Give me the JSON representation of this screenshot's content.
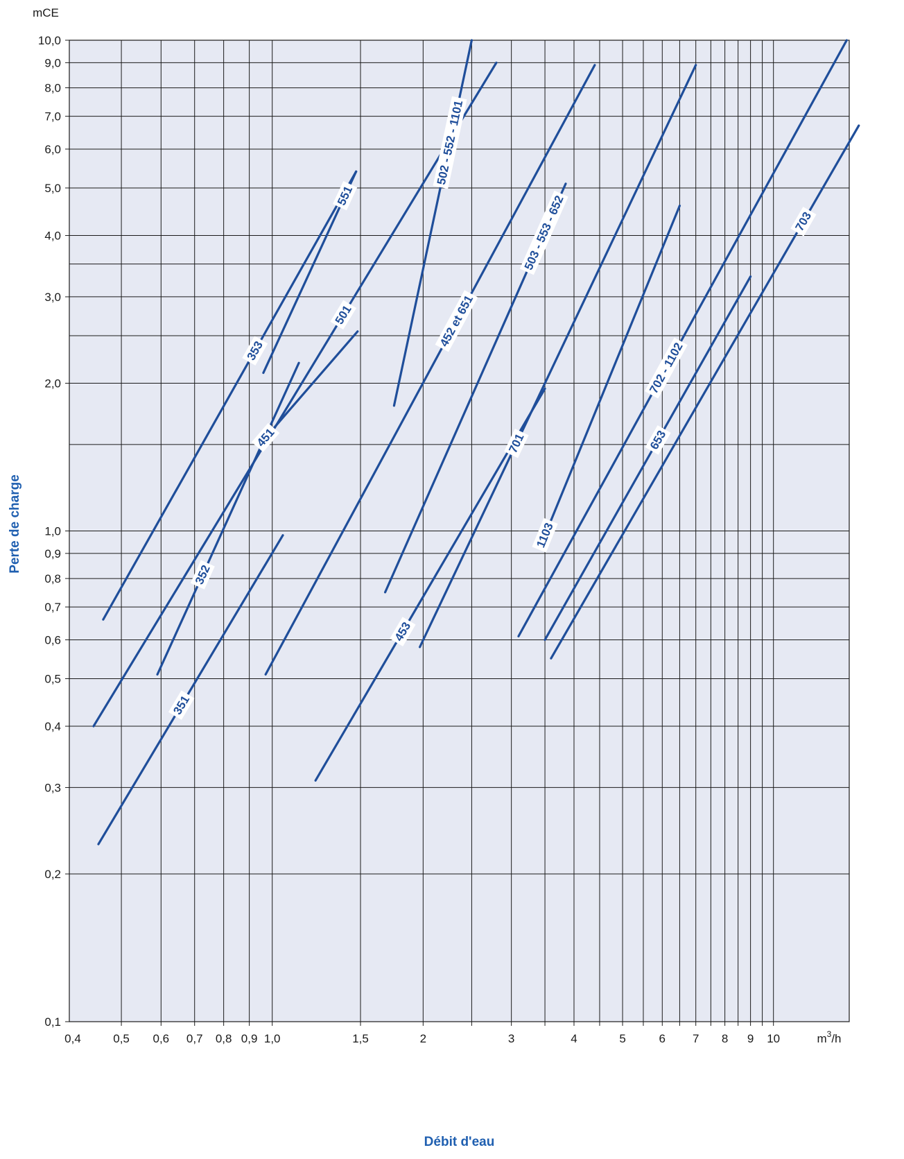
{
  "chart_data": {
    "type": "line",
    "title": "",
    "xlabel": "Débit d'eau",
    "ylabel": "Perte de charge",
    "x_unit_base": "m",
    "x_unit_sup": "3",
    "x_unit_tail": "/h",
    "y_unit": "mCE",
    "x_scale": "log",
    "y_scale": "log",
    "xlim": [
      0.4,
      15
    ],
    "ylim": [
      0.1,
      10
    ],
    "grid": true,
    "legend": "none (series labelled along lines)",
    "colors": {
      "line": "#1f4e9a",
      "plot_background": "#e6e9f3",
      "grid": "#1a1a1a",
      "axis_title": "#1f5fb0"
    },
    "x_gridlines": [
      0.5,
      0.6,
      0.7,
      0.8,
      0.9,
      1.0,
      1.5,
      2,
      2.5,
      3,
      3.5,
      4,
      4.5,
      5,
      5.5,
      6,
      6.5,
      7,
      7.5,
      8,
      8.5,
      9,
      9.5,
      10
    ],
    "y_gridlines": [
      0.2,
      0.3,
      0.4,
      0.5,
      0.6,
      0.7,
      0.8,
      0.9,
      1.0,
      1.5,
      2.0,
      2.5,
      3.0,
      3.5,
      4.0,
      5.0,
      6.0,
      7.0,
      8.0,
      9.0,
      10.0
    ],
    "x_ticks": [
      {
        "value": 0.4,
        "label": "0,4"
      },
      {
        "value": 0.5,
        "label": "0,5"
      },
      {
        "value": 0.6,
        "label": "0,6"
      },
      {
        "value": 0.7,
        "label": "0,7"
      },
      {
        "value": 0.8,
        "label": "0,8"
      },
      {
        "value": 0.9,
        "label": "0,9"
      },
      {
        "value": 1.0,
        "label": "1,0"
      },
      {
        "value": 1.5,
        "label": "1,5"
      },
      {
        "value": 2,
        "label": "2"
      },
      {
        "value": 3,
        "label": "3"
      },
      {
        "value": 4,
        "label": "4"
      },
      {
        "value": 5,
        "label": "5"
      },
      {
        "value": 6,
        "label": "6"
      },
      {
        "value": 7,
        "label": "7"
      },
      {
        "value": 8,
        "label": "8"
      },
      {
        "value": 9,
        "label": "9"
      },
      {
        "value": 10,
        "label": "10"
      }
    ],
    "y_ticks": [
      {
        "value": 0.1,
        "label": "0,1"
      },
      {
        "value": 0.2,
        "label": "0,2"
      },
      {
        "value": 0.3,
        "label": "0,3"
      },
      {
        "value": 0.4,
        "label": "0,4"
      },
      {
        "value": 0.5,
        "label": "0,5"
      },
      {
        "value": 0.6,
        "label": "0,6"
      },
      {
        "value": 0.7,
        "label": "0,7"
      },
      {
        "value": 0.8,
        "label": "0,8"
      },
      {
        "value": 0.9,
        "label": "0,9"
      },
      {
        "value": 1.0,
        "label": "1,0"
      },
      {
        "value": 2.0,
        "label": "2,0"
      },
      {
        "value": 3.0,
        "label": "3,0"
      },
      {
        "value": 4.0,
        "label": "4,0"
      },
      {
        "value": 5.0,
        "label": "5,0"
      },
      {
        "value": 6.0,
        "label": "6,0"
      },
      {
        "value": 7.0,
        "label": "7,0"
      },
      {
        "value": 8.0,
        "label": "8,0"
      },
      {
        "value": 9.0,
        "label": "9,0"
      },
      {
        "value": 10.0,
        "label": "10,0"
      }
    ],
    "series": [
      {
        "name": "551",
        "x": [
          0.96,
          1.47
        ],
        "y": [
          2.1,
          5.4
        ],
        "label_at": 0.88
      },
      {
        "name": "353",
        "x": [
          0.46,
          1.47
        ],
        "y": [
          0.66,
          5.4
        ],
        "label_at": 0.6
      },
      {
        "name": "501",
        "x": [
          0.44,
          2.8
        ],
        "y": [
          0.4,
          9.0
        ],
        "label_at": 0.62
      },
      {
        "name": "352",
        "x": [
          0.59,
          1.13
        ],
        "y": [
          0.51,
          2.2
        ],
        "label_at": 0.32
      },
      {
        "name": "451",
        "x": [
          0.97,
          1.48
        ],
        "y": [
          1.55,
          2.55
        ],
        "label_at": 0.0
      },
      {
        "name": "351",
        "x": [
          0.45,
          1.05
        ],
        "y": [
          0.23,
          0.98
        ],
        "label_at": 0.45
      },
      {
        "name": "502 - 552 - 1101",
        "x": [
          1.75,
          2.5
        ],
        "y": [
          1.8,
          10.0
        ],
        "label_at": 0.72
      },
      {
        "name": "452 et 651",
        "x": [
          0.97,
          4.4
        ],
        "y": [
          0.51,
          8.9
        ],
        "label_at": 0.58
      },
      {
        "name": "503 - 553 - 652",
        "x": [
          1.68,
          3.85
        ],
        "y": [
          0.75,
          5.1
        ],
        "label_at": 0.88
      },
      {
        "name": "453",
        "x": [
          1.22,
          3.5
        ],
        "y": [
          0.31,
          1.95
        ],
        "label_at": 0.38
      },
      {
        "name": "701",
        "x": [
          1.97,
          7.0
        ],
        "y": [
          0.58,
          8.9
        ],
        "label_at": 0.35
      },
      {
        "name": "1103",
        "x": [
          3.5,
          6.5
        ],
        "y": [
          0.98,
          4.6
        ],
        "label_at": 0.0
      },
      {
        "name": "702 - 1102",
        "x": [
          3.1,
          14.0
        ],
        "y": [
          0.61,
          10.0
        ],
        "label_at": 0.45
      },
      {
        "name": "653",
        "x": [
          3.5,
          9.0
        ],
        "y": [
          0.6,
          3.3
        ],
        "label_at": 0.55
      },
      {
        "name": "703",
        "x": [
          3.6,
          14.8
        ],
        "y": [
          0.55,
          6.7
        ],
        "label_at": 0.82
      }
    ]
  }
}
